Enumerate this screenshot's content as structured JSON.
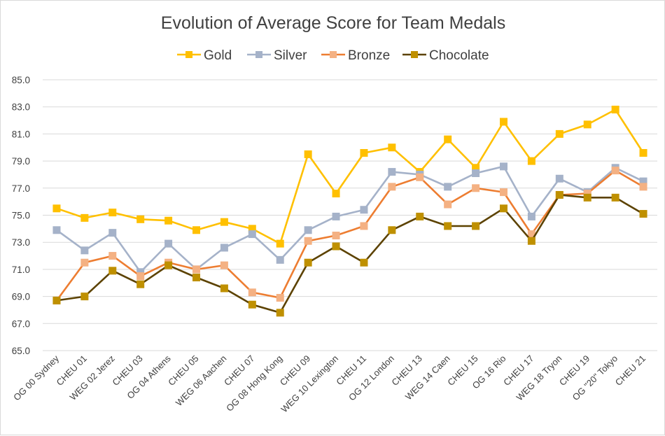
{
  "chart_data": {
    "type": "line",
    "title": "Evolution of Average Score for Team Medals",
    "xlabel": "",
    "ylabel": "",
    "ylim": [
      65,
      85
    ],
    "y_ticks": [
      "65.0",
      "67.0",
      "69.0",
      "71.0",
      "73.0",
      "75.0",
      "77.0",
      "79.0",
      "81.0",
      "83.0",
      "85.0"
    ],
    "grid": true,
    "legend_position": "top",
    "categories": [
      "OG 00 Sydney",
      "CHEU 01",
      "WEG 02 Jerez",
      "CHEU 03",
      "OG 04 Athens",
      "CHEU 05",
      "WEG 06 Aachen",
      "CHEU 07",
      "OG 08 Hong Kong",
      "CHEU 09",
      "WEG 10 Lexington",
      "CHEU 11",
      "OG 12 London",
      "CHEU 13",
      "WEG 14 Caen",
      "CHEU 15",
      "OG 16   Rio",
      "CHEU 17",
      "WEG 18 Tryon",
      "CHEU 19",
      "OG \"20\" Tokyo",
      "CHEU 21"
    ],
    "series": [
      {
        "name": "Gold",
        "color": "#FFC000",
        "marker_color": "#FFC000",
        "values": [
          75.5,
          74.8,
          75.2,
          74.7,
          74.6,
          73.9,
          74.5,
          74.0,
          72.9,
          79.5,
          76.6,
          79.6,
          80.0,
          78.2,
          80.6,
          78.5,
          81.9,
          79.0,
          81.0,
          81.7,
          82.8,
          79.6
        ]
      },
      {
        "name": "Silver",
        "color": "#A5B2C9",
        "marker_color": "#A5B2C9",
        "values": [
          73.9,
          72.4,
          73.7,
          70.8,
          72.9,
          71.0,
          72.6,
          73.6,
          71.7,
          73.9,
          74.9,
          75.4,
          78.2,
          78.0,
          77.1,
          78.1,
          78.6,
          74.9,
          77.7,
          76.7,
          78.5,
          77.5
        ]
      },
      {
        "name": "Bronze",
        "color": "#ED7D31",
        "marker_color": "#F4B183",
        "values": [
          68.7,
          71.5,
          72.0,
          70.5,
          71.5,
          71.0,
          71.3,
          69.3,
          68.9,
          73.1,
          73.5,
          74.2,
          77.1,
          77.8,
          75.8,
          77.0,
          76.7,
          73.6,
          76.5,
          76.6,
          78.3,
          77.1
        ]
      },
      {
        "name": "Chocolate",
        "color": "#5C4200",
        "marker_color": "#BF9000",
        "values": [
          68.7,
          69.0,
          70.9,
          69.9,
          71.3,
          70.4,
          69.6,
          68.4,
          67.8,
          71.5,
          72.7,
          71.5,
          73.9,
          74.9,
          74.2,
          74.2,
          75.5,
          73.1,
          76.5,
          76.3,
          76.3,
          75.1
        ]
      }
    ]
  }
}
